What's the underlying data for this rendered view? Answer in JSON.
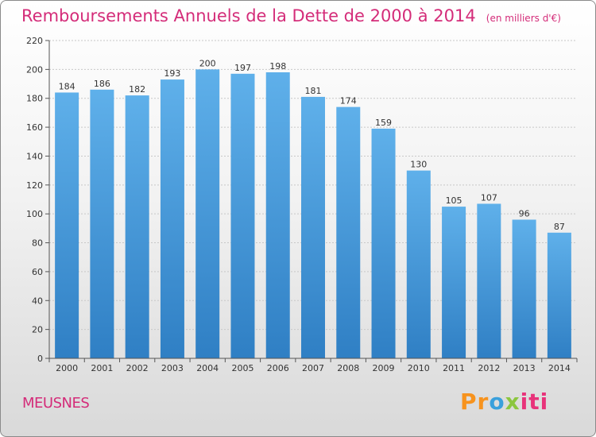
{
  "chart_data": {
    "type": "bar",
    "title": "Remboursements Annuels de la Dette de 2000 à 2014",
    "subtitle": "(en milliers d'€)",
    "xlabel": "",
    "ylabel": "",
    "categories": [
      "2000",
      "2001",
      "2002",
      "2003",
      "2004",
      "2005",
      "2006",
      "2007",
      "2008",
      "2009",
      "2010",
      "2011",
      "2012",
      "2013",
      "2014"
    ],
    "values": [
      184,
      186,
      182,
      193,
      200,
      197,
      198,
      181,
      174,
      159,
      130,
      105,
      107,
      96,
      87
    ],
    "ylim": [
      0,
      220
    ],
    "yticks": [
      0,
      20,
      40,
      60,
      80,
      100,
      120,
      140,
      160,
      180,
      200,
      220
    ],
    "grid": true,
    "bar_color": "#4fa3e3"
  },
  "footer": {
    "commune": "MEUSNES",
    "brand": [
      "Pr",
      "o",
      "x",
      "iti"
    ]
  }
}
